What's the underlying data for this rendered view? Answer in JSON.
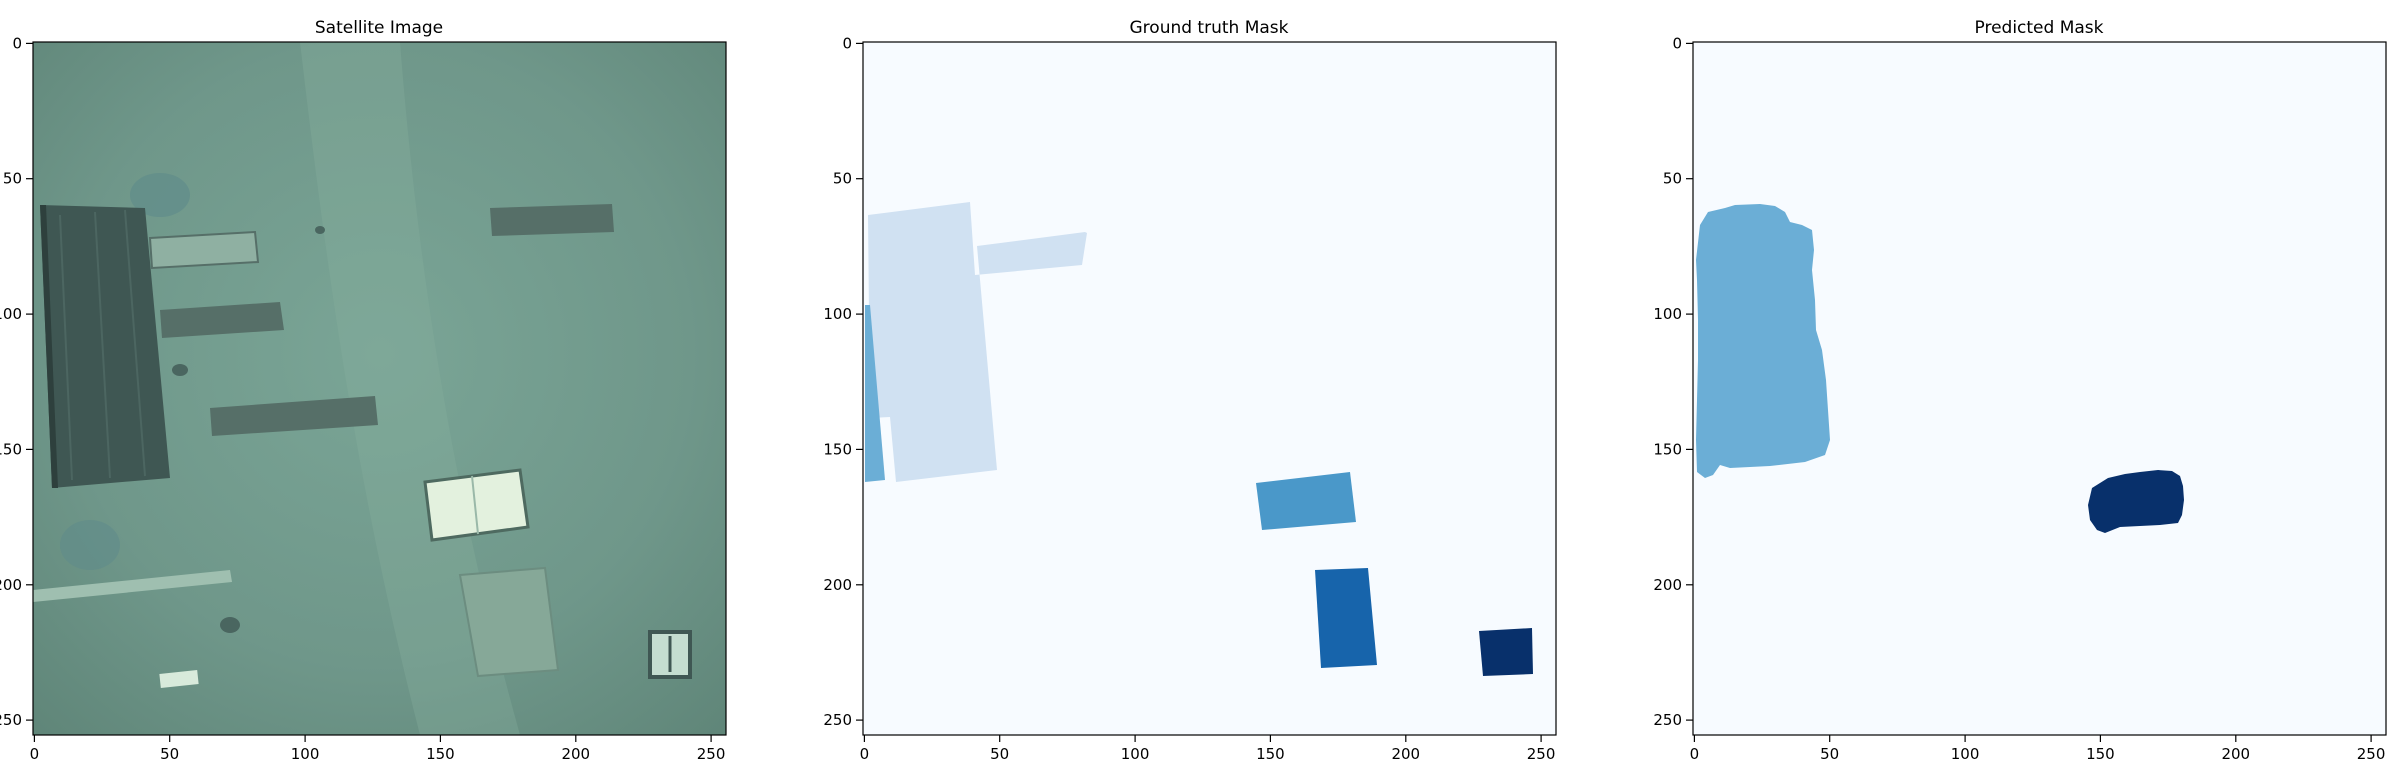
{
  "figure": {
    "panels": [
      {
        "id": "satellite",
        "title": "Satellite Image",
        "x_ticks": [
          "0",
          "50",
          "100",
          "150",
          "200",
          "250"
        ],
        "y_ticks": [
          "0",
          "50",
          "100",
          "150",
          "200",
          "250"
        ]
      },
      {
        "id": "ground-truth",
        "title": "Ground truth Mask",
        "x_ticks": [
          "0",
          "50",
          "100",
          "150",
          "200",
          "250"
        ],
        "y_ticks": [
          "0",
          "50",
          "100",
          "150",
          "200",
          "250"
        ]
      },
      {
        "id": "predicted",
        "title": "Predicted Mask",
        "x_ticks": [
          "0",
          "50",
          "100",
          "150",
          "200",
          "250"
        ],
        "y_ticks": [
          "0",
          "50",
          "100",
          "150",
          "200",
          "250"
        ]
      }
    ],
    "colors": {
      "mask_background": "#f7fbff",
      "class_1": "#d0e1f2",
      "class_2": "#6baed6",
      "class_3": "#4a98c9",
      "class_4": "#1764ab",
      "class_5": "#08306b",
      "satellite_ground": "#6f978a"
    }
  }
}
